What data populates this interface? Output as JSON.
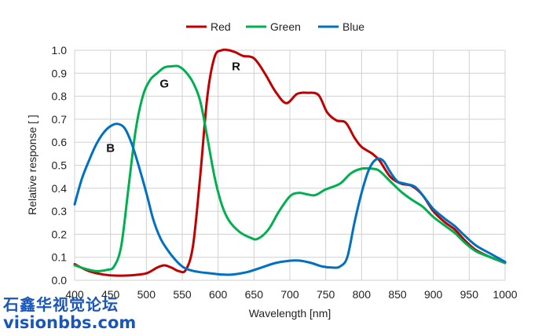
{
  "chart_data": {
    "type": "line",
    "title": "",
    "xlabel": "Wavelength [nm]",
    "ylabel": "Relative response [ ]",
    "xlim": [
      400,
      1000
    ],
    "ylim": [
      0,
      1.0
    ],
    "xticks": [
      400,
      450,
      500,
      550,
      600,
      650,
      700,
      750,
      800,
      850,
      900,
      950,
      1000
    ],
    "yticks": [
      "0.0",
      "0.1",
      "0.2",
      "0.3",
      "0.4",
      "0.5",
      "0.6",
      "0.7",
      "0.8",
      "0.9",
      "1.0"
    ],
    "grid": true,
    "legend": "top-center",
    "series": [
      {
        "name": "Red",
        "color": "#c00000",
        "points": [
          [
            400,
            0.07
          ],
          [
            420,
            0.04
          ],
          [
            440,
            0.025
          ],
          [
            460,
            0.02
          ],
          [
            480,
            0.022
          ],
          [
            500,
            0.03
          ],
          [
            515,
            0.055
          ],
          [
            525,
            0.065
          ],
          [
            535,
            0.055
          ],
          [
            545,
            0.04
          ],
          [
            555,
            0.045
          ],
          [
            565,
            0.15
          ],
          [
            575,
            0.45
          ],
          [
            585,
            0.8
          ],
          [
            595,
            0.97
          ],
          [
            605,
            1.0
          ],
          [
            615,
            1.0
          ],
          [
            625,
            0.99
          ],
          [
            635,
            0.975
          ],
          [
            650,
            0.965
          ],
          [
            665,
            0.9
          ],
          [
            680,
            0.82
          ],
          [
            695,
            0.77
          ],
          [
            710,
            0.81
          ],
          [
            725,
            0.815
          ],
          [
            740,
            0.805
          ],
          [
            752,
            0.73
          ],
          [
            765,
            0.695
          ],
          [
            778,
            0.685
          ],
          [
            790,
            0.62
          ],
          [
            800,
            0.58
          ],
          [
            815,
            0.55
          ],
          [
            825,
            0.52
          ],
          [
            840,
            0.45
          ],
          [
            855,
            0.42
          ],
          [
            870,
            0.41
          ],
          [
            885,
            0.37
          ],
          [
            900,
            0.3
          ],
          [
            915,
            0.255
          ],
          [
            930,
            0.22
          ],
          [
            945,
            0.17
          ],
          [
            960,
            0.13
          ],
          [
            980,
            0.1
          ],
          [
            1000,
            0.075
          ]
        ]
      },
      {
        "name": "Green",
        "color": "#00b050",
        "points": [
          [
            400,
            0.065
          ],
          [
            415,
            0.05
          ],
          [
            430,
            0.04
          ],
          [
            445,
            0.045
          ],
          [
            455,
            0.06
          ],
          [
            465,
            0.15
          ],
          [
            475,
            0.4
          ],
          [
            485,
            0.65
          ],
          [
            495,
            0.8
          ],
          [
            505,
            0.87
          ],
          [
            515,
            0.9
          ],
          [
            525,
            0.925
          ],
          [
            535,
            0.93
          ],
          [
            545,
            0.93
          ],
          [
            555,
            0.905
          ],
          [
            565,
            0.86
          ],
          [
            575,
            0.78
          ],
          [
            585,
            0.62
          ],
          [
            595,
            0.45
          ],
          [
            605,
            0.33
          ],
          [
            615,
            0.26
          ],
          [
            630,
            0.21
          ],
          [
            645,
            0.185
          ],
          [
            655,
            0.18
          ],
          [
            670,
            0.22
          ],
          [
            685,
            0.3
          ],
          [
            700,
            0.365
          ],
          [
            712,
            0.38
          ],
          [
            722,
            0.375
          ],
          [
            735,
            0.37
          ],
          [
            750,
            0.395
          ],
          [
            770,
            0.42
          ],
          [
            785,
            0.465
          ],
          [
            800,
            0.485
          ],
          [
            815,
            0.485
          ],
          [
            825,
            0.475
          ],
          [
            840,
            0.43
          ],
          [
            855,
            0.385
          ],
          [
            870,
            0.35
          ],
          [
            885,
            0.32
          ],
          [
            900,
            0.275
          ],
          [
            915,
            0.24
          ],
          [
            930,
            0.205
          ],
          [
            945,
            0.16
          ],
          [
            960,
            0.125
          ],
          [
            980,
            0.1
          ],
          [
            1000,
            0.075
          ]
        ]
      },
      {
        "name": "Blue",
        "color": "#0070c0",
        "points": [
          [
            400,
            0.33
          ],
          [
            410,
            0.44
          ],
          [
            420,
            0.52
          ],
          [
            430,
            0.59
          ],
          [
            440,
            0.64
          ],
          [
            450,
            0.67
          ],
          [
            460,
            0.68
          ],
          [
            470,
            0.66
          ],
          [
            480,
            0.59
          ],
          [
            490,
            0.49
          ],
          [
            500,
            0.38
          ],
          [
            510,
            0.26
          ],
          [
            520,
            0.18
          ],
          [
            530,
            0.13
          ],
          [
            540,
            0.09
          ],
          [
            550,
            0.06
          ],
          [
            560,
            0.045
          ],
          [
            575,
            0.035
          ],
          [
            590,
            0.03
          ],
          [
            605,
            0.025
          ],
          [
            620,
            0.025
          ],
          [
            640,
            0.035
          ],
          [
            660,
            0.055
          ],
          [
            680,
            0.075
          ],
          [
            700,
            0.085
          ],
          [
            715,
            0.085
          ],
          [
            730,
            0.075
          ],
          [
            745,
            0.06
          ],
          [
            760,
            0.055
          ],
          [
            770,
            0.06
          ],
          [
            780,
            0.1
          ],
          [
            790,
            0.25
          ],
          [
            800,
            0.38
          ],
          [
            810,
            0.48
          ],
          [
            820,
            0.525
          ],
          [
            830,
            0.52
          ],
          [
            840,
            0.47
          ],
          [
            850,
            0.43
          ],
          [
            860,
            0.42
          ],
          [
            875,
            0.405
          ],
          [
            890,
            0.35
          ],
          [
            900,
            0.31
          ],
          [
            915,
            0.27
          ],
          [
            930,
            0.235
          ],
          [
            945,
            0.19
          ],
          [
            960,
            0.15
          ],
          [
            980,
            0.115
          ],
          [
            1000,
            0.08
          ]
        ]
      }
    ],
    "annotations": [
      {
        "text": "R",
        "x": 625,
        "y": 0.93
      },
      {
        "text": "G",
        "x": 525,
        "y": 0.855
      },
      {
        "text": "B",
        "x": 450,
        "y": 0.575
      }
    ]
  },
  "watermark": {
    "line1": "石鑫华视觉论坛",
    "line2": "visionbbs.com"
  }
}
